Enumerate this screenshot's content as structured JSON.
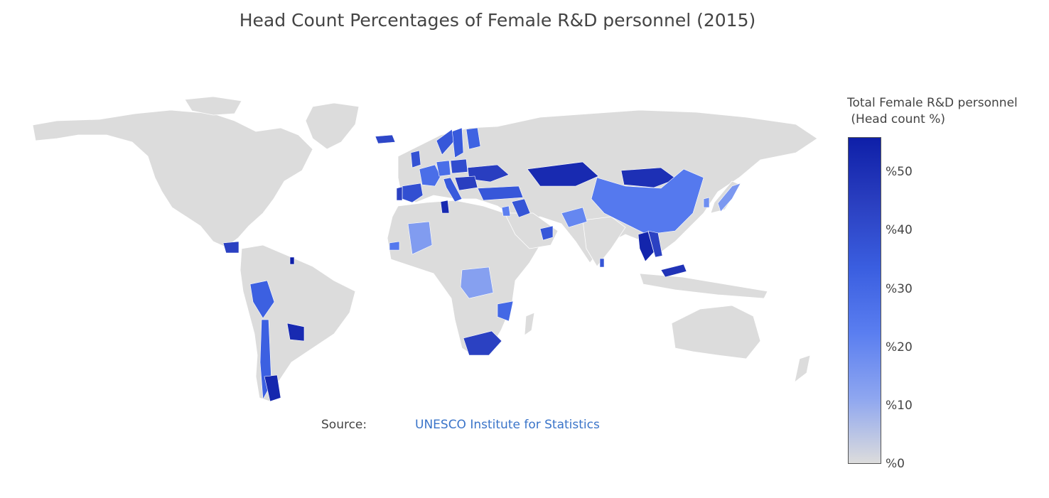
{
  "title": "Head Count Percentages of Female R&D personnel (2015)",
  "source": {
    "label": "Source:",
    "link_text": "UNESCO Institute for Statistics"
  },
  "colorbar": {
    "title_line1": "Total Female R&D personnel",
    "title_line2": " (Head count %)",
    "min": 0,
    "max": 56,
    "ticks": [
      {
        "value": 0,
        "label": "%0"
      },
      {
        "value": 10,
        "label": "%10"
      },
      {
        "value": 20,
        "label": "%20"
      },
      {
        "value": 30,
        "label": "%30"
      },
      {
        "value": 40,
        "label": "%40"
      },
      {
        "value": 50,
        "label": "%50"
      }
    ],
    "colorscale": [
      "#dcdcdc",
      "#8ea6f0",
      "#5a7ef0",
      "#3a5ee0",
      "#2a3fc0",
      "#0e1fa8"
    ]
  },
  "colors": {
    "land": "#dcdcdc",
    "border": "#ffffff",
    "title": "#444444",
    "link": "#3a74c9"
  },
  "map_data": {
    "regions": [
      {
        "name": "Spain",
        "value": 39
      },
      {
        "name": "Portugal",
        "value": 44
      },
      {
        "name": "France",
        "value": 28
      },
      {
        "name": "United Kingdom",
        "value": 38
      },
      {
        "name": "Germany",
        "value": 28
      },
      {
        "name": "Poland",
        "value": 40
      },
      {
        "name": "Ukraine",
        "value": 45
      },
      {
        "name": "Sweden",
        "value": 35
      },
      {
        "name": "Finland",
        "value": 32
      },
      {
        "name": "Norway",
        "value": 36
      },
      {
        "name": "Iceland",
        "value": 42
      },
      {
        "name": "Italy",
        "value": 35
      },
      {
        "name": "Balkans",
        "value": 45
      },
      {
        "name": "Turkey",
        "value": 36
      },
      {
        "name": "Tunisia",
        "value": 52
      },
      {
        "name": "Iraq",
        "value": 37
      },
      {
        "name": "Jordan",
        "value": 22
      },
      {
        "name": "Kazakhstan",
        "value": 52
      },
      {
        "name": "Mongolia",
        "value": 50
      },
      {
        "name": "China",
        "value": 24
      },
      {
        "name": "Japan",
        "value": 15
      },
      {
        "name": "South Korea",
        "value": 18
      },
      {
        "name": "Pakistan",
        "value": 20
      },
      {
        "name": "Oman",
        "value": 36
      },
      {
        "name": "Thailand",
        "value": 54
      },
      {
        "name": "Vietnam",
        "value": 44
      },
      {
        "name": "Malaysia",
        "value": 49
      },
      {
        "name": "Sri Lanka",
        "value": 37
      },
      {
        "name": "Mali",
        "value": 14
      },
      {
        "name": "Senegal",
        "value": 24
      },
      {
        "name": "DR Congo",
        "value": 13
      },
      {
        "name": "Mozambique",
        "value": 30
      },
      {
        "name": "South Africa",
        "value": 44
      },
      {
        "name": "Peru",
        "value": 33
      },
      {
        "name": "Chile",
        "value": 33
      },
      {
        "name": "Argentina",
        "value": 53
      },
      {
        "name": "Paraguay",
        "value": 52
      },
      {
        "name": "Guatemala",
        "value": 44
      },
      {
        "name": "Venezuela",
        "value": 56
      }
    ]
  }
}
